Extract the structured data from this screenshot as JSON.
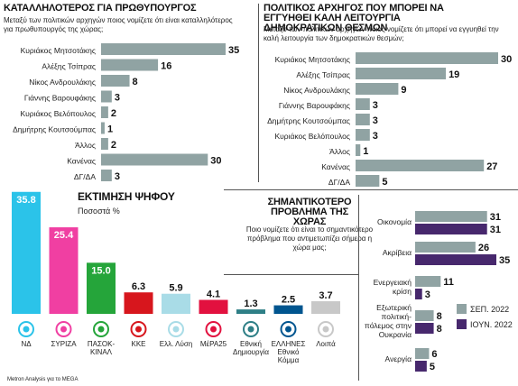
{
  "chart_data": [
    {
      "id": "pm",
      "type": "bar",
      "orientation": "horizontal",
      "title": "ΚΑΤΑΛΛΗΛΟΤΕΡΟΣ ΓΙΑ ΠΡΩΘΥΠΟΥΡΓΟΣ",
      "subtitle": "Μεταξύ των πολιτικών αρχηγών ποιος νομίζετε ότι είναι καταλληλότερος για πρωθυπουργός της χώρας;",
      "categories": [
        "Κυριάκος Μητσοτάκης",
        "Αλέξης Τσίπρας",
        "Νίκος Ανδρουλάκης",
        "Γιάννης Βαρουφάκης",
        "Κυριάκος Βελόπουλος",
        "Δημήτρης Κουτσούμπας",
        "Άλλος",
        "Κανένας",
        "ΔΓ/ΔΑ"
      ],
      "values": [
        35,
        16,
        8,
        3,
        2,
        1,
        2,
        30,
        3
      ],
      "xlim": [
        0,
        35
      ],
      "bar_color": "#90a3a3"
    },
    {
      "id": "democracy",
      "type": "bar",
      "orientation": "horizontal",
      "title": "ΠΟΛΙΤΙΚΟΣ ΑΡΧΗΓΟΣ ΠΟΥ ΜΠΟΡΕΙ ΝΑ ΕΓΓΥΗΘΕΙ ΚΑΛΗ ΛΕΙΤΟΥΡΓΙΑ ΔΗΜΟΚΡΑΤΙΚΩΝ ΘΕΣΜΩΝ",
      "subtitle": "Μεταξύ των πολιτικών αρχηγών ποιος νομίζετε ότι μπορεί να εγγυηθεί την καλή λειτουργία των δημοκρατικών θεσμών;",
      "categories": [
        "Κυριάκος Μητσοτάκης",
        "Αλέξης Τσίπρας",
        "Νίκος Ανδρουλάκης",
        "Γιάννης Βαρουφάκης",
        "Δημήτρης Κουτσούμπας",
        "Κυριάκος Βελόπουλος",
        "Άλλος",
        "Κανένας",
        "ΔΓ/ΔΑ"
      ],
      "values": [
        30,
        19,
        9,
        3,
        3,
        3,
        1,
        27,
        5
      ],
      "xlim": [
        0,
        30
      ],
      "bar_color": "#90a3a3"
    },
    {
      "id": "vote",
      "type": "bar",
      "orientation": "vertical",
      "title": "ΕΚΤΙΜΗΣΗ ΨΗΦΟΥ",
      "subtitle": "Ποσοστά %",
      "categories": [
        "ΝΔ",
        "ΣΥΡΙΖΑ",
        "ΠΑΣΟΚ-ΚΙΝΑΛ",
        "ΚΚΕ",
        "Ελλ. Λύση",
        "ΜέΡΑ25",
        "Εθνική Δημιουργία",
        "ΕΛΛΗΝΕΣ Εθνικό Κόμμα",
        "Λοιπά"
      ],
      "values": [
        35.8,
        25.4,
        15.0,
        6.3,
        5.9,
        4.1,
        1.3,
        2.5,
        3.7
      ],
      "value_labels": [
        "35.8",
        "25.4",
        "15.0",
        "6.3",
        "5.9",
        "4.1",
        "1.3",
        "2.5",
        "3.7"
      ],
      "colors": [
        "#2bc3e9",
        "#f03fa2",
        "#25a53a",
        "#d7161d",
        "#a9dce7",
        "#e2113f",
        "#2e7f86",
        "#00558f",
        "#c8c8c8"
      ],
      "label_colors": [
        "#ffffff",
        "#ffffff",
        "#ffffff",
        "#111111",
        "#111111",
        "#111111",
        "#111111",
        "#111111",
        "#111111"
      ],
      "label_inside": [
        true,
        true,
        true,
        false,
        false,
        false,
        false,
        false,
        false
      ],
      "ylim": [
        0,
        36
      ],
      "source": "Metron Analysis για το MEGA"
    },
    {
      "id": "problem",
      "type": "bar",
      "orientation": "horizontal",
      "title": "ΣΗΜΑΝΤΙΚΟΤΕΡΟ ΠΡΟΒΛΗΜΑ ΤΗΣ ΧΩΡΑΣ",
      "subtitle": "Ποιο νομίζετε ότι είναι το σημαντικότερο πρόβλημα που αντιμετωπίζει σήμερα η χώρα μας;",
      "categories": [
        "Οικονομία",
        "Ακρίβεια",
        "Ενεργειακή κρίση",
        "Εξωτερική πολιτική-πόλεμος στην Ουκρανία",
        "Ανεργία"
      ],
      "category_lines": [
        [
          "Οικονομία"
        ],
        [
          "Ακρίβεια"
        ],
        [
          "Ενεργειακή",
          "κρίση"
        ],
        [
          "Εξωτερική",
          "πολιτική-",
          "πόλεμος στην",
          "Ουκρανία"
        ],
        [
          "Ανεργία"
        ]
      ],
      "series": [
        {
          "name": "ΣΕΠ. 2022",
          "color": "#90a3a3",
          "values": [
            31,
            26,
            11,
            8,
            6
          ]
        },
        {
          "name": "ΙΟΥΝ. 2022",
          "color": "#47286d",
          "values": [
            31,
            35,
            3,
            8,
            5
          ]
        }
      ],
      "xlim": [
        0,
        35
      ],
      "legend_position": "right"
    }
  ]
}
